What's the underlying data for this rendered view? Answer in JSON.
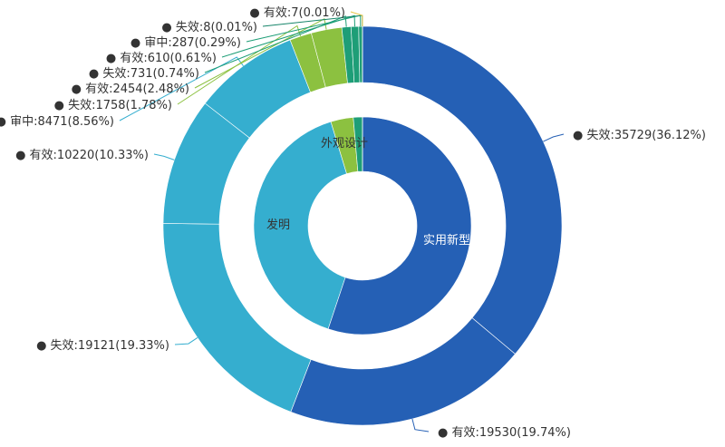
{
  "chart_data": {
    "type": "pie",
    "variant": "nested-donut",
    "inner": [
      {
        "name": "实用新型",
        "value": 55259,
        "color": "#2560b5"
      },
      {
        "name": "发明",
        "value": 40274,
        "color": "#35aecf"
      },
      {
        "name": "外观设计",
        "value": 3357,
        "color": "#8cc140"
      },
      {
        "name": "",
        "value": 1349,
        "color": "#1e9e77"
      },
      {
        "name": "",
        "value": 9,
        "color": "#17856a"
      }
    ],
    "outer": [
      {
        "label": "失效:35729(36.12%)",
        "value": 35729,
        "color": "#2560b5"
      },
      {
        "label": "有效:19530(19.74%)",
        "value": 19530,
        "color": "#2560b5"
      },
      {
        "label": "失效:19121(19.33%)",
        "value": 19121,
        "color": "#35aecf"
      },
      {
        "label": "有效:10220(10.33%)",
        "value": 10220,
        "color": "#35aecf"
      },
      {
        "label": "审中:8471(8.56%)",
        "value": 8471,
        "color": "#35aecf"
      },
      {
        "label": "失效:1758(1.78%)",
        "value": 1758,
        "color": "#8cc140"
      },
      {
        "label": "有效:2454(2.48%)",
        "value": 2454,
        "color": "#8cc140"
      },
      {
        "label": "失效:731(0.74%)",
        "value": 731,
        "color": "#1e9e77"
      },
      {
        "label": "有效:610(0.61%)",
        "value": 610,
        "color": "#1e9e77"
      },
      {
        "label": "审中:287(0.29%)",
        "value": 287,
        "color": "#1e9e77"
      },
      {
        "label": "失效:8(0.01%)",
        "value": 8,
        "color": "#17856a"
      },
      {
        "label": "有效:7(0.01%)",
        "value": 7,
        "color": "#e8c84a"
      }
    ],
    "legend": "none"
  }
}
